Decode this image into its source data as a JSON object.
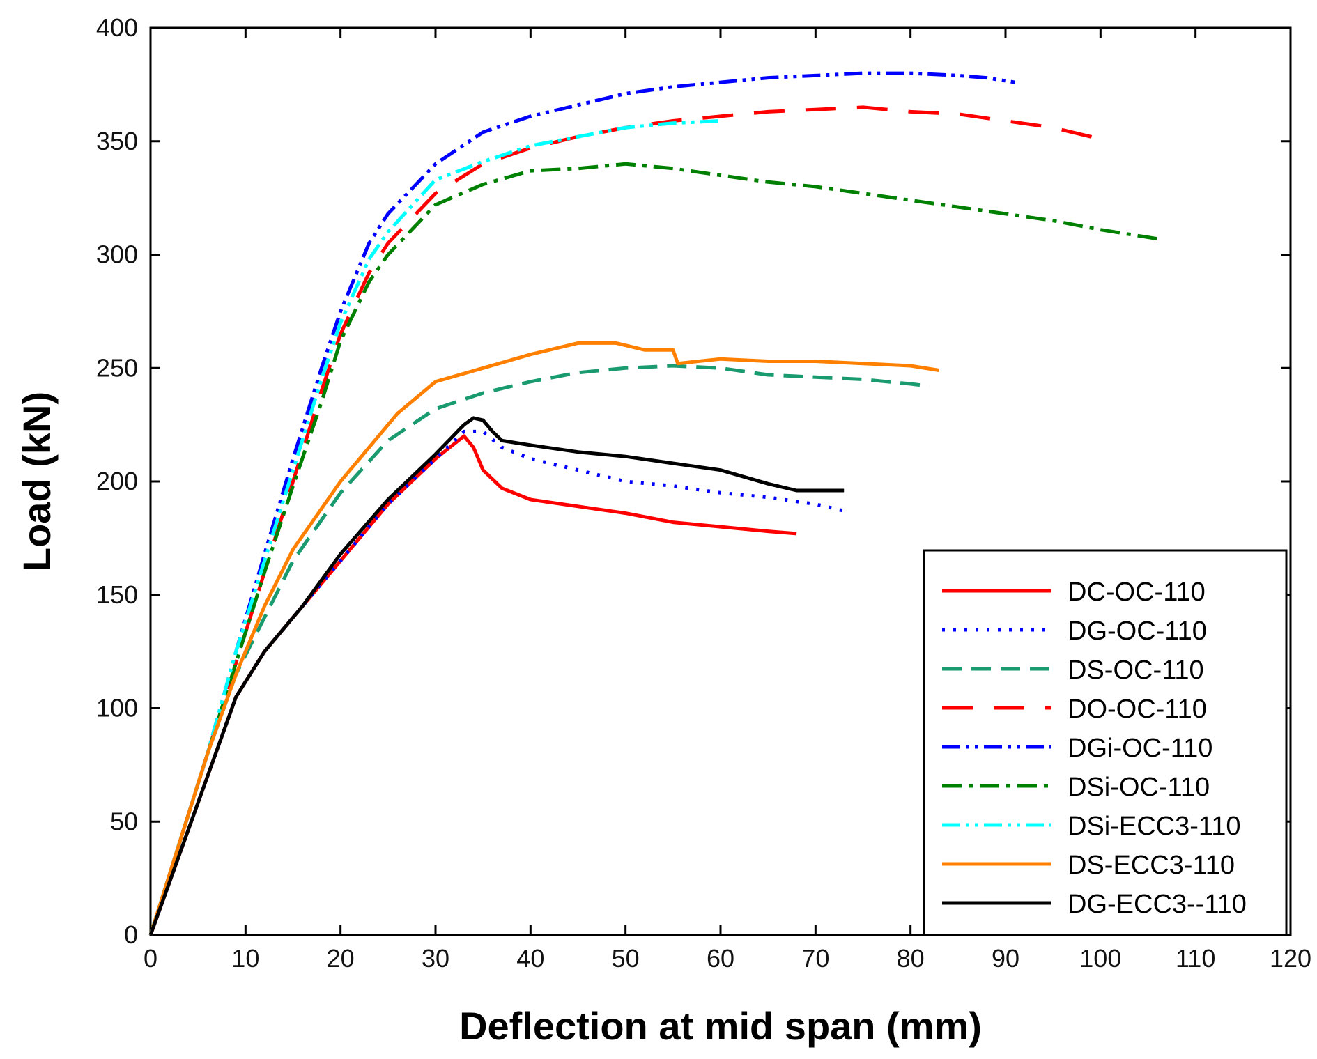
{
  "chart_data": {
    "type": "line",
    "title": "",
    "xlabel": "Deflection at mid span (mm)",
    "ylabel": "Load (kN)",
    "xlim": [
      0,
      120
    ],
    "ylim": [
      0,
      400
    ],
    "xticks": [
      0,
      10,
      20,
      30,
      40,
      50,
      60,
      70,
      80,
      90,
      100,
      110,
      120
    ],
    "yticks": [
      0,
      50,
      100,
      150,
      200,
      250,
      300,
      350,
      400
    ],
    "grid": false,
    "legend_position": "bottom-right",
    "series": [
      {
        "name": "DC-OC-110",
        "color": "#ff0000",
        "dash": "solid",
        "points": [
          [
            0,
            0
          ],
          [
            3,
            35
          ],
          [
            6,
            70
          ],
          [
            9,
            105
          ],
          [
            12,
            125
          ],
          [
            16,
            145
          ],
          [
            20,
            165
          ],
          [
            25,
            190
          ],
          [
            30,
            210
          ],
          [
            33,
            220
          ],
          [
            34,
            215
          ],
          [
            35,
            205
          ],
          [
            37,
            197
          ],
          [
            40,
            192
          ],
          [
            45,
            189
          ],
          [
            50,
            186
          ],
          [
            55,
            182
          ],
          [
            60,
            180
          ],
          [
            65,
            178
          ],
          [
            68,
            177
          ]
        ]
      },
      {
        "name": "DG-OC-110",
        "color": "#0000ff",
        "dash": "dot",
        "points": [
          [
            0,
            0
          ],
          [
            3,
            35
          ],
          [
            6,
            70
          ],
          [
            9,
            105
          ],
          [
            12,
            125
          ],
          [
            16,
            145
          ],
          [
            20,
            165
          ],
          [
            25,
            190
          ],
          [
            30,
            210
          ],
          [
            33,
            222
          ],
          [
            35,
            222
          ],
          [
            37,
            215
          ],
          [
            40,
            210
          ],
          [
            45,
            205
          ],
          [
            50,
            200
          ],
          [
            55,
            198
          ],
          [
            60,
            195
          ],
          [
            65,
            193
          ],
          [
            70,
            190
          ],
          [
            73,
            187
          ]
        ]
      },
      {
        "name": "DS-OC-110",
        "color": "#1a9b6f",
        "dash": "dash",
        "points": [
          [
            0,
            0
          ],
          [
            3,
            40
          ],
          [
            6,
            80
          ],
          [
            9,
            115
          ],
          [
            12,
            140
          ],
          [
            15,
            165
          ],
          [
            20,
            195
          ],
          [
            25,
            218
          ],
          [
            30,
            232
          ],
          [
            35,
            239
          ],
          [
            40,
            244
          ],
          [
            45,
            248
          ],
          [
            50,
            250
          ],
          [
            55,
            251
          ],
          [
            60,
            250
          ],
          [
            65,
            247
          ],
          [
            70,
            246
          ],
          [
            75,
            245
          ],
          [
            80,
            243
          ],
          [
            82,
            242
          ]
        ]
      },
      {
        "name": "DO-OC-110",
        "color": "#ff0000",
        "dash": "longdash",
        "points": [
          [
            0,
            0
          ],
          [
            3,
            40
          ],
          [
            6,
            80
          ],
          [
            9,
            120
          ],
          [
            12,
            160
          ],
          [
            15,
            200
          ],
          [
            18,
            240
          ],
          [
            20,
            265
          ],
          [
            23,
            292
          ],
          [
            25,
            305
          ],
          [
            30,
            327
          ],
          [
            35,
            340
          ],
          [
            40,
            347
          ],
          [
            45,
            352
          ],
          [
            50,
            356
          ],
          [
            55,
            359
          ],
          [
            60,
            361
          ],
          [
            65,
            363
          ],
          [
            70,
            364
          ],
          [
            75,
            365
          ],
          [
            80,
            363
          ],
          [
            85,
            362
          ],
          [
            90,
            359
          ],
          [
            95,
            356
          ],
          [
            100,
            351
          ]
        ]
      },
      {
        "name": "DGi-OC-110",
        "color": "#0000ff",
        "dash": "dashdotdot",
        "points": [
          [
            0,
            0
          ],
          [
            3,
            40
          ],
          [
            6,
            80
          ],
          [
            9,
            125
          ],
          [
            12,
            168
          ],
          [
            15,
            210
          ],
          [
            18,
            250
          ],
          [
            20,
            275
          ],
          [
            23,
            305
          ],
          [
            25,
            318
          ],
          [
            30,
            340
          ],
          [
            35,
            354
          ],
          [
            40,
            361
          ],
          [
            45,
            366
          ],
          [
            50,
            371
          ],
          [
            55,
            374
          ],
          [
            60,
            376
          ],
          [
            65,
            378
          ],
          [
            70,
            379
          ],
          [
            75,
            380
          ],
          [
            80,
            380
          ],
          [
            85,
            379
          ],
          [
            88,
            378
          ],
          [
            91,
            376
          ]
        ]
      },
      {
        "name": "DSi-OC-110",
        "color": "#008000",
        "dash": "dashdot",
        "points": [
          [
            0,
            0
          ],
          [
            3,
            40
          ],
          [
            6,
            80
          ],
          [
            9,
            120
          ],
          [
            12,
            160
          ],
          [
            15,
            198
          ],
          [
            18,
            235
          ],
          [
            20,
            262
          ],
          [
            23,
            288
          ],
          [
            25,
            300
          ],
          [
            30,
            322
          ],
          [
            35,
            331
          ],
          [
            40,
            337
          ],
          [
            45,
            338
          ],
          [
            50,
            340
          ],
          [
            55,
            338
          ],
          [
            60,
            335
          ],
          [
            65,
            332
          ],
          [
            70,
            330
          ],
          [
            75,
            327
          ],
          [
            80,
            324
          ],
          [
            85,
            321
          ],
          [
            90,
            318
          ],
          [
            95,
            315
          ],
          [
            100,
            311
          ],
          [
            106,
            307
          ]
        ]
      },
      {
        "name": "DSi-ECC3-110",
        "color": "#00ffff",
        "dash": "dashdotdot",
        "points": [
          [
            0,
            0
          ],
          [
            3,
            40
          ],
          [
            6,
            80
          ],
          [
            9,
            125
          ],
          [
            12,
            165
          ],
          [
            15,
            205
          ],
          [
            18,
            245
          ],
          [
            20,
            270
          ],
          [
            23,
            298
          ],
          [
            25,
            310
          ],
          [
            30,
            333
          ],
          [
            35,
            341
          ],
          [
            40,
            348
          ],
          [
            45,
            352
          ],
          [
            50,
            356
          ],
          [
            55,
            358
          ],
          [
            60,
            359
          ]
        ]
      },
      {
        "name": "DS-ECC3-110",
        "color": "#ff8000",
        "dash": "solid",
        "points": [
          [
            0,
            0
          ],
          [
            3,
            40
          ],
          [
            6,
            80
          ],
          [
            9,
            115
          ],
          [
            12,
            145
          ],
          [
            15,
            170
          ],
          [
            20,
            200
          ],
          [
            26,
            230
          ],
          [
            30,
            244
          ],
          [
            35,
            250
          ],
          [
            40,
            256
          ],
          [
            45,
            261
          ],
          [
            49,
            261
          ],
          [
            52,
            258
          ],
          [
            55,
            258
          ],
          [
            55.5,
            252
          ],
          [
            60,
            254
          ],
          [
            65,
            253
          ],
          [
            70,
            253
          ],
          [
            75,
            252
          ],
          [
            80,
            251
          ],
          [
            83,
            249
          ]
        ]
      },
      {
        "name": "DG-ECC3--110",
        "color": "#000000",
        "dash": "solid",
        "points": [
          [
            0,
            0
          ],
          [
            3,
            35
          ],
          [
            6,
            70
          ],
          [
            9,
            105
          ],
          [
            12,
            125
          ],
          [
            16,
            145
          ],
          [
            20,
            168
          ],
          [
            25,
            192
          ],
          [
            30,
            212
          ],
          [
            33,
            225
          ],
          [
            34,
            228
          ],
          [
            35,
            227
          ],
          [
            36,
            222
          ],
          [
            37,
            218
          ],
          [
            40,
            216
          ],
          [
            45,
            213
          ],
          [
            50,
            211
          ],
          [
            55,
            208
          ],
          [
            60,
            205
          ],
          [
            65,
            199
          ],
          [
            68,
            196
          ],
          [
            73,
            196
          ]
        ]
      }
    ]
  }
}
